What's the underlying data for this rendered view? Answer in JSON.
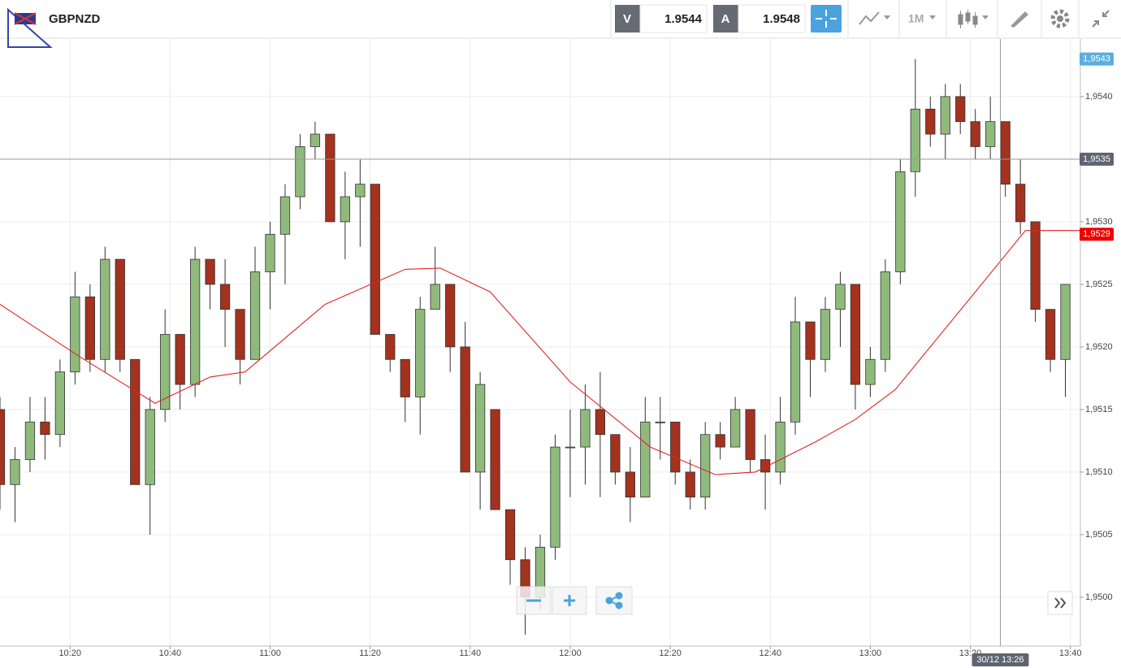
{
  "header": {
    "symbol": "GBPNZD",
    "bid_label": "V",
    "bid": "1.9544",
    "ask_label": "A",
    "ask": "1.9548",
    "timeframe": "1M"
  },
  "chart_data": {
    "type": "candlestick",
    "x": [
      "10:06",
      "10:09",
      "10:12",
      "10:15",
      "10:18",
      "10:21",
      "10:24",
      "10:27",
      "10:30",
      "10:33",
      "10:36",
      "10:39",
      "10:42",
      "10:45",
      "10:48",
      "10:51",
      "10:54",
      "10:57",
      "11:00",
      "11:03",
      "11:06",
      "11:09",
      "11:12",
      "11:15",
      "11:18",
      "11:21",
      "11:24",
      "11:27",
      "11:30",
      "11:33",
      "11:36",
      "11:39",
      "11:42",
      "11:45",
      "11:48",
      "11:51",
      "11:54",
      "11:57",
      "12:00",
      "12:03",
      "12:06",
      "12:09",
      "12:12",
      "12:15",
      "12:18",
      "12:21",
      "12:24",
      "12:27",
      "12:30",
      "12:33",
      "12:36",
      "12:39",
      "12:42",
      "12:45",
      "12:48",
      "12:51",
      "12:54",
      "12:57",
      "13:00",
      "13:03",
      "13:06",
      "13:09",
      "13:12",
      "13:15",
      "13:18",
      "13:21",
      "13:24",
      "13:27",
      "13:30",
      "13:33",
      "13:36",
      "13:39"
    ],
    "open": [
      1.9515,
      1.9509,
      1.9511,
      1.9514,
      1.9513,
      1.9518,
      1.9524,
      1.9519,
      1.9527,
      1.9519,
      1.9509,
      1.9515,
      1.9521,
      1.9517,
      1.9527,
      1.9525,
      1.9523,
      1.9519,
      1.9526,
      1.9529,
      1.9532,
      1.9536,
      1.9537,
      1.953,
      1.9532,
      1.9533,
      1.9521,
      1.9519,
      1.9516,
      1.9523,
      1.9525,
      1.952,
      1.951,
      1.9515,
      1.9507,
      1.9503,
      1.95,
      1.9504,
      1.9512,
      1.9512,
      1.9515,
      1.9513,
      1.951,
      1.9508,
      1.9514,
      1.9514,
      1.951,
      1.9508,
      1.9513,
      1.9512,
      1.9515,
      1.9511,
      1.951,
      1.9514,
      1.9522,
      1.9519,
      1.9523,
      1.9525,
      1.9517,
      1.9519,
      1.9526,
      1.9534,
      1.9539,
      1.9537,
      1.954,
      1.9538,
      1.9536,
      1.9538,
      1.9533,
      1.953,
      1.9523,
      1.9519
    ],
    "high": [
      1.9516,
      1.9512,
      1.9516,
      1.9516,
      1.9519,
      1.9526,
      1.9525,
      1.9528,
      1.9527,
      1.9519,
      1.9516,
      1.9523,
      1.9521,
      1.9528,
      1.9527,
      1.9527,
      1.9523,
      1.9528,
      1.953,
      1.9533,
      1.9537,
      1.9538,
      1.9537,
      1.9534,
      1.9535,
      1.9533,
      1.9521,
      1.9519,
      1.9524,
      1.9528,
      1.9525,
      1.9522,
      1.9518,
      1.9515,
      1.9507,
      1.9504,
      1.9505,
      1.9513,
      1.9515,
      1.9517,
      1.9518,
      1.9513,
      1.9512,
      1.9516,
      1.9516,
      1.9514,
      1.9511,
      1.9514,
      1.9514,
      1.9516,
      1.9515,
      1.9513,
      1.9516,
      1.9524,
      1.9522,
      1.9524,
      1.9526,
      1.9525,
      1.952,
      1.9527,
      1.9535,
      1.9543,
      1.954,
      1.9541,
      1.9541,
      1.9539,
      1.954,
      1.9538,
      1.9535,
      1.953,
      1.9523,
      1.9525
    ],
    "low": [
      1.9507,
      1.9506,
      1.951,
      1.9511,
      1.9512,
      1.9517,
      1.9518,
      1.9518,
      1.9518,
      1.9509,
      1.9505,
      1.9514,
      1.9515,
      1.9516,
      1.9523,
      1.952,
      1.9517,
      1.9519,
      1.9523,
      1.9525,
      1.9531,
      1.9535,
      1.953,
      1.9527,
      1.9528,
      1.9521,
      1.9518,
      1.9514,
      1.9513,
      1.9523,
      1.9518,
      1.951,
      1.9507,
      1.9507,
      1.9501,
      1.9497,
      1.9499,
      1.9503,
      1.9508,
      1.9509,
      1.9508,
      1.9509,
      1.9506,
      1.9508,
      1.9511,
      1.9509,
      1.9507,
      1.9507,
      1.9511,
      1.9512,
      1.951,
      1.9507,
      1.9509,
      1.9513,
      1.9516,
      1.9518,
      1.952,
      1.9515,
      1.9516,
      1.9518,
      1.9525,
      1.9532,
      1.9536,
      1.9535,
      1.9537,
      1.9535,
      1.9535,
      1.9532,
      1.9529,
      1.9522,
      1.9518,
      1.9516
    ],
    "close": [
      1.9509,
      1.9511,
      1.9514,
      1.9513,
      1.9518,
      1.9524,
      1.9519,
      1.9527,
      1.9519,
      1.9509,
      1.9515,
      1.9521,
      1.9517,
      1.9527,
      1.9525,
      1.9523,
      1.9519,
      1.9526,
      1.9529,
      1.9532,
      1.9536,
      1.9537,
      1.953,
      1.9532,
      1.9533,
      1.9521,
      1.9519,
      1.9516,
      1.9523,
      1.9525,
      1.952,
      1.951,
      1.9517,
      1.9507,
      1.9503,
      1.95,
      1.9504,
      1.9512,
      1.9512,
      1.9515,
      1.9513,
      1.951,
      1.9508,
      1.9514,
      1.9514,
      1.951,
      1.9508,
      1.9513,
      1.9512,
      1.9515,
      1.9511,
      1.951,
      1.9514,
      1.9522,
      1.9519,
      1.9523,
      1.9525,
      1.9517,
      1.9519,
      1.9526,
      1.9534,
      1.9539,
      1.9537,
      1.954,
      1.9538,
      1.9536,
      1.9538,
      1.9533,
      1.953,
      1.9523,
      1.9519,
      1.9525
    ],
    "up_color": "#8fba7c",
    "down_color": "#a3321f",
    "ma": {
      "x": [
        "10:06",
        "10:22",
        "10:37",
        "10:48",
        "10:55",
        "11:11",
        "11:27",
        "11:34",
        "11:44",
        "12:00",
        "12:16",
        "12:29",
        "12:37",
        "12:49",
        "12:57",
        "13:05",
        "13:21",
        "13:31",
        "13:42"
      ],
      "values": [
        1.95234,
        1.95192,
        1.95155,
        1.95176,
        1.9518,
        1.95234,
        1.95262,
        1.95263,
        1.95244,
        1.95172,
        1.9512,
        1.95098,
        1.951,
        1.95124,
        1.95142,
        1.95166,
        1.95244,
        1.95293,
        1.95293
      ],
      "color": "#e02626"
    },
    "xlim": [
      "10:06",
      "13:42"
    ],
    "ylim": [
      1.94961,
      1.95446
    ],
    "xticks": [
      "10:20",
      "10:40",
      "11:00",
      "11:20",
      "11:40",
      "12:00",
      "12:20",
      "12:40",
      "13:00",
      "13:20",
      "13:40"
    ],
    "yticks": [
      {
        "value": 1.95,
        "label": "1,9500"
      },
      {
        "value": 1.9505,
        "label": "1,9505"
      },
      {
        "value": 1.951,
        "label": "1,9510"
      },
      {
        "value": 1.9515,
        "label": "1,9515"
      },
      {
        "value": 1.952,
        "label": "1,9520"
      },
      {
        "value": 1.9525,
        "label": "1,9525"
      },
      {
        "value": 1.953,
        "label": "1,9530"
      },
      {
        "value": 1.9535,
        "label": "1,9535"
      },
      {
        "value": 1.954,
        "label": "1,9540"
      }
    ],
    "grid": true,
    "crosshair": {
      "price": {
        "value": 1.9535,
        "label": "1,9535"
      },
      "time": {
        "value": "13:26",
        "label": "30/12 13:26"
      }
    },
    "price_badges": [
      {
        "value": 1.9543,
        "label": "1,9543",
        "color": "#5aaee0"
      },
      {
        "value": 1.9529,
        "label": "1,9529",
        "color": "#ee0000"
      }
    ]
  }
}
